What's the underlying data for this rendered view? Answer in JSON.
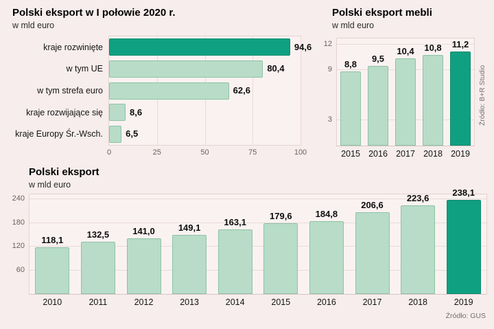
{
  "colors": {
    "background": "#f6edec",
    "plot_background": "#faf2f1",
    "plot_border": "#e4d3d1",
    "gridline": "#e9dad8",
    "bar_light": "#b8dcc7",
    "bar_light_border": "#8ec2a6",
    "bar_highlight": "#0fa081",
    "text_dark": "#141414",
    "tick_text": "#6b625f",
    "source_text": "#756f6c"
  },
  "chart_data": [
    {
      "type": "bar",
      "orientation": "horizontal",
      "title": "Polski eksport w I połowie 2020 r.",
      "subtitle": "w mld euro",
      "categories": [
        "kraje rozwinięte",
        "w tym UE",
        "w tym strefa euro",
        "kraje rozwijające się",
        "kraje Europy Śr.-Wsch."
      ],
      "values": [
        94.6,
        80.4,
        62.6,
        8.6,
        6.5
      ],
      "value_labels": [
        "94,6",
        "80,4",
        "62,6",
        "8,6",
        "6,5"
      ],
      "highlight_index": 0,
      "x_ticks": [
        0,
        25,
        50,
        75,
        100
      ],
      "xlim": [
        0,
        100
      ],
      "grid": true,
      "legend": false
    },
    {
      "type": "bar",
      "orientation": "vertical",
      "title": "Polski eksport mebli",
      "subtitle": "w mld euro",
      "categories": [
        "2015",
        "2016",
        "2017",
        "2018",
        "2019"
      ],
      "values": [
        8.8,
        9.5,
        10.4,
        10.8,
        11.2
      ],
      "value_labels": [
        "8,8",
        "9,5",
        "10,4",
        "10,8",
        "11,2"
      ],
      "highlight_index": 4,
      "y_ticks": [
        3,
        9,
        12
      ],
      "ylim": [
        0,
        12
      ],
      "grid": true,
      "legend": false,
      "source": "Źródło: B+R Studio"
    },
    {
      "type": "bar",
      "orientation": "vertical",
      "title": "Polski eksport",
      "subtitle": "w mld euro",
      "categories": [
        "2010",
        "2011",
        "2012",
        "2013",
        "2014",
        "2015",
        "2016",
        "2017",
        "2018",
        "2019"
      ],
      "values": [
        118.1,
        132.5,
        141.0,
        149.1,
        163.1,
        179.6,
        184.8,
        206.6,
        223.6,
        238.1
      ],
      "value_labels": [
        "118,1",
        "132,5",
        "141,0",
        "149,1",
        "163,1",
        "179,6",
        "184,8",
        "206,6",
        "223,6",
        "238,1"
      ],
      "highlight_index": 9,
      "y_ticks": [
        60,
        120,
        180,
        240
      ],
      "ylim": [
        0,
        240
      ],
      "grid": true,
      "legend": false,
      "source": "Źródło: GUS"
    }
  ]
}
